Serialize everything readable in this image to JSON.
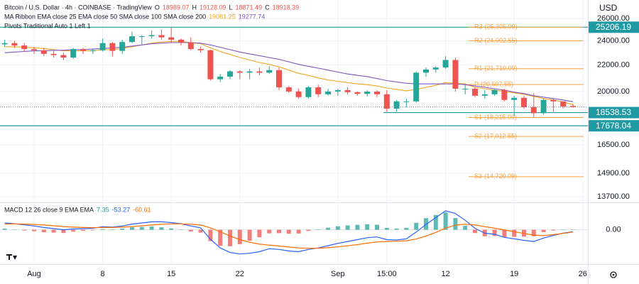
{
  "chart_data": [
    {
      "type": "candlestick",
      "title": "Bitcoin / U.S. Dollar · 4h · COINBASE · TradingView",
      "ohlc_legend": [
        {
          "key": "O",
          "value": 18989.07
        },
        {
          "key": "H",
          "value": 19128.09
        },
        {
          "key": "L",
          "value": 18871.49
        },
        {
          "key": "C",
          "value": 18918.39
        }
      ],
      "currency": "USD",
      "log_scale": true,
      "grid": true,
      "ylim": [
        13420,
        27800
      ],
      "yticks": [
        {
          "value": 26000,
          "label": "26000.00"
        },
        {
          "value": 24000,
          "label": "24000.00"
        },
        {
          "value": 22000,
          "label": "22000.00"
        },
        {
          "value": 20000,
          "label": "20000.00"
        },
        {
          "value": 16500,
          "label": "16500.00"
        },
        {
          "value": 14900,
          "label": "14900.00"
        },
        {
          "value": 13700,
          "label": "13700.00"
        }
      ],
      "categories": [
        null,
        null,
        null,
        "Aug",
        null,
        null,
        null,
        null,
        null,
        null,
        "8",
        null,
        null,
        null,
        null,
        null,
        null,
        "15",
        null,
        null,
        null,
        null,
        null,
        null,
        "22",
        null,
        null,
        null,
        null,
        null,
        null,
        null,
        null,
        null,
        "Sep",
        null,
        null,
        null,
        null,
        "15:00",
        null,
        null,
        null,
        null,
        null,
        "12",
        null,
        null,
        null,
        null,
        null,
        null,
        "19",
        null,
        null,
        null,
        null,
        null,
        null,
        "26"
      ],
      "up_color": "#26a69a",
      "down_color": "#ef5350",
      "open": [
        23700,
        23800,
        23600,
        23300,
        23200,
        22900,
        22800,
        22600,
        23300,
        23150,
        23200,
        23800,
        23150,
        23900,
        24400,
        24400,
        24500,
        24300,
        24100,
        23850,
        23300,
        23200,
        20900,
        21100,
        21500,
        21400,
        21500,
        21400,
        21600,
        20300,
        20000,
        19600,
        20300,
        19800,
        20000,
        20100,
        19950,
        19830,
        19990,
        19800,
        18800,
        19300,
        19300,
        21400,
        21650,
        21800,
        22400,
        20200,
        20200,
        19700,
        19800,
        20100,
        19400,
        19550,
        18900,
        18500,
        19400,
        19300,
        18989.07,
        null
      ],
      "high": [
        24100,
        24000,
        23800,
        23500,
        23400,
        23200,
        23000,
        23400,
        23400,
        23300,
        24200,
        23900,
        24100,
        24800,
        24500,
        24900,
        25000,
        25200,
        24200,
        24300,
        23500,
        23250,
        21300,
        21600,
        21600,
        21700,
        21800,
        21900,
        21800,
        20400,
        20200,
        20400,
        20500,
        20200,
        20200,
        20300,
        20000,
        20100,
        20100,
        20100,
        19400,
        19500,
        21500,
        21800,
        21900,
        22700,
        22600,
        20500,
        20300,
        20100,
        20200,
        20200,
        19700,
        19700,
        19900,
        19500,
        19500,
        19300,
        19128.09,
        null
      ],
      "low": [
        23500,
        23400,
        23100,
        22900,
        22700,
        22600,
        22400,
        22500,
        22900,
        22900,
        23100,
        22700,
        22900,
        23800,
        23700,
        24200,
        24100,
        23800,
        23600,
        23200,
        23000,
        20800,
        20700,
        20900,
        20900,
        20900,
        21200,
        21300,
        20100,
        19900,
        19500,
        19500,
        19600,
        19700,
        19700,
        19800,
        19700,
        19650,
        19600,
        18600,
        18600,
        18900,
        19200,
        21100,
        21400,
        21700,
        20000,
        19800,
        19600,
        19500,
        19700,
        19300,
        18300,
        18800,
        18200,
        18400,
        18600,
        18800,
        18871.49,
        null
      ],
      "close": [
        23800,
        23600,
        23300,
        23200,
        22900,
        22800,
        22600,
        23300,
        23150,
        23200,
        23800,
        23150,
        23900,
        24400,
        24400,
        24500,
        24300,
        24100,
        23850,
        23300,
        23200,
        20900,
        21100,
        21500,
        21400,
        21500,
        21400,
        21600,
        20300,
        20000,
        19600,
        20300,
        19800,
        20000,
        20100,
        19950,
        19830,
        19990,
        19800,
        18800,
        19300,
        19300,
        21400,
        21650,
        21800,
        22400,
        20200,
        20200,
        19700,
        19800,
        20100,
        19400,
        19550,
        18900,
        18500,
        19400,
        19300,
        18950,
        18918.39,
        null
      ],
      "ma_ribbon": {
        "label": "MA Ribbon EMA close 25 EMA close 50 SMA close 100 SMA close 200",
        "legend_values": [
          19081.25,
          19277.74
        ],
        "series": [
          {
            "color": "#f5a623",
            "values": [
              23500,
              23500,
              23450,
              23400,
              23350,
              23250,
              23150,
              23150,
              23150,
              23150,
              23250,
              23250,
              23350,
              23500,
              23650,
              23800,
              23900,
              23950,
              23950,
              23850,
              23750,
              23400,
              23100,
              22850,
              22600,
              22400,
              22200,
              22050,
              21850,
              21600,
              21350,
              21200,
              21000,
              20850,
              20750,
              20650,
              20550,
              20500,
              20400,
              20250,
              20150,
              20050,
              20150,
              20300,
              20450,
              20650,
              20600,
              20550,
              20300,
              20200,
              20100,
              20000,
              19900,
              19800,
              19650,
              19500,
              19400,
              19250,
              19081.25,
              null
            ]
          },
          {
            "color": "#7e57c2",
            "values": [
              23000,
              23050,
              23100,
              23150,
              23150,
              23200,
              23200,
              23250,
              23250,
              23300,
              23350,
              23400,
              23450,
              23550,
              23650,
              23750,
              23800,
              23850,
              23850,
              23850,
              23800,
              23650,
              23450,
              23250,
              23050,
              22900,
              22750,
              22600,
              22450,
              22250,
              22050,
              21900,
              21750,
              21600,
              21450,
              21300,
              21200,
              21100,
              20950,
              20800,
              20700,
              20600,
              20550,
              20550,
              20550,
              20550,
              20550,
              20500,
              20400,
              20300,
              20200,
              20100,
              19950,
              19850,
              19700,
              19600,
              19500,
              19400,
              19277.74,
              null
            ]
          }
        ]
      },
      "levels": [
        25206.19,
        18538.53,
        17678.04
      ],
      "level_color": "#1f9aa3",
      "pivots": {
        "label": "Pivots Traditional Auto 1 Left 1",
        "color": "#f7a440",
        "levels": [
          {
            "name": "R3",
            "value": 25205.09,
            "label": "(25,205.09)"
          },
          {
            "name": "R2",
            "value": 24002.55,
            "label": "(24,002.55)"
          },
          {
            "name": "R1",
            "value": 21710.09,
            "label": "(21,710.09)"
          },
          {
            "name": "P",
            "value": 20507.55,
            "label": "(20,507.55)"
          },
          {
            "name": "S1",
            "value": 18215.09,
            "label": "(18,215.09)"
          },
          {
            "name": "S2",
            "value": 17012.55,
            "label": "(17,012.55)"
          },
          {
            "name": "S3",
            "value": 14720.09,
            "label": "(14,720.09)"
          }
        ]
      }
    },
    {
      "type": "macd",
      "label": "MACD 12 26 close 9 EMA EMA",
      "legend_values": [
        7.35,
        -53.27,
        -60.61
      ],
      "ylim": [
        -870,
        630
      ],
      "yticks": [
        {
          "value": 0,
          "label": "0.00"
        }
      ],
      "histogram": {
        "up_color": "#26a69a",
        "down_color": "#ef5350",
        "values": [
          30,
          5,
          -20,
          -40,
          -65,
          -75,
          -85,
          -50,
          -30,
          -15,
          20,
          8,
          30,
          65,
          75,
          85,
          65,
          35,
          5,
          -45,
          -75,
          -300,
          -425,
          -435,
          -380,
          -290,
          -200,
          -95,
          -90,
          -105,
          -100,
          -30,
          8,
          55,
          92,
          114,
          131,
          145,
          132,
          50,
          32,
          50,
          184,
          307,
          390,
          456,
          309,
          103,
          -86,
          -173,
          -162,
          -194,
          -187,
          -182,
          -170,
          -64,
          -20,
          5,
          7.35,
          null
        ]
      },
      "macd": {
        "color": "#2962ff",
        "values": [
          180,
          160,
          130,
          100,
          60,
          30,
          0,
          20,
          30,
          40,
          80,
          70,
          100,
          150,
          180,
          210,
          210,
          190,
          160,
          100,
          50,
          -250,
          -480,
          -600,
          -640,
          -620,
          -580,
          -500,
          -520,
          -560,
          -580,
          -520,
          -480,
          -420,
          -360,
          -310,
          -260,
          -210,
          -190,
          -260,
          -270,
          -240,
          -60,
          140,
          320,
          500,
          430,
          250,
          40,
          -90,
          -120,
          -200,
          -240,
          -280,
          -310,
          -220,
          -150,
          -90,
          -53.27,
          null
        ]
      },
      "signal": {
        "color": "#ff6d00",
        "values": [
          150,
          155,
          150,
          140,
          125,
          105,
          85,
          70,
          60,
          55,
          60,
          62,
          70,
          85,
          105,
          125,
          145,
          155,
          155,
          145,
          125,
          50,
          -55,
          -165,
          -260,
          -330,
          -380,
          -405,
          -430,
          -455,
          -480,
          -490,
          -488,
          -475,
          -452,
          -424,
          -391,
          -355,
          -322,
          -310,
          -302,
          -290,
          -244,
          -167,
          -70,
          44,
          121,
          147,
          126,
          83,
          42,
          -6,
          -53,
          -98,
          -140,
          -156,
          -130,
          -95,
          -60.61,
          null
        ]
      }
    }
  ]
}
